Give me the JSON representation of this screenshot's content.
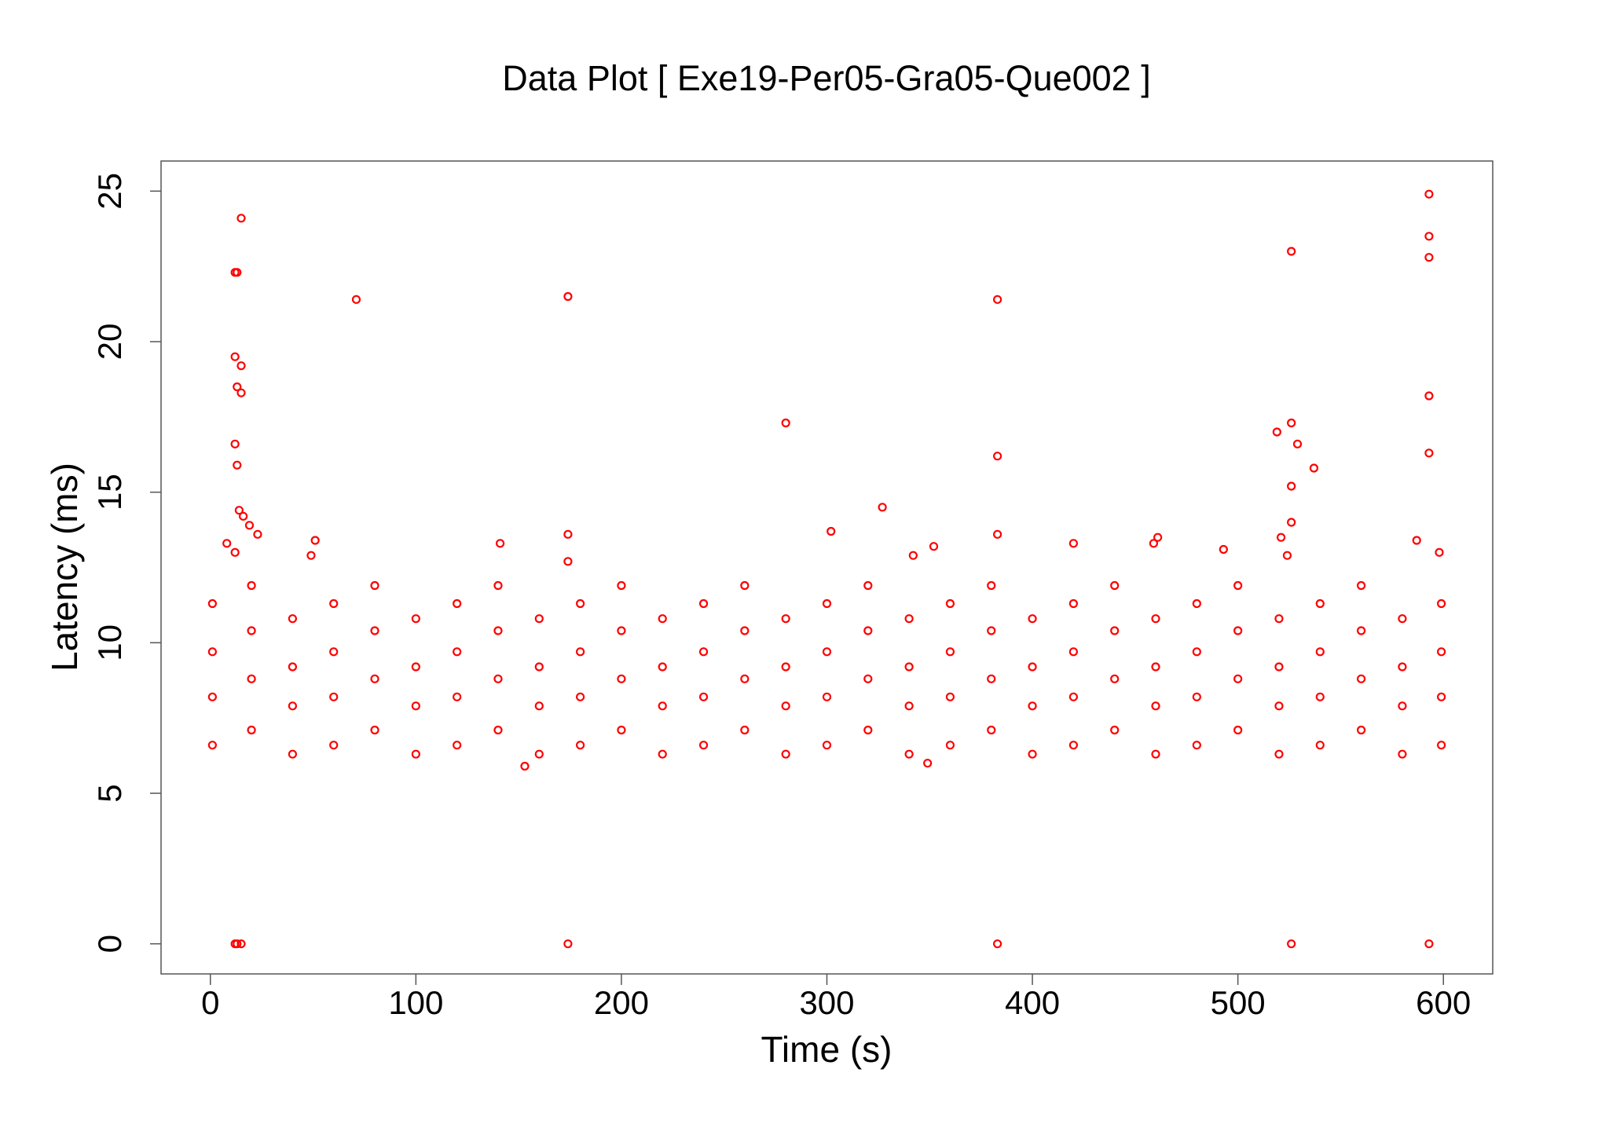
{
  "chart_data": {
    "type": "scatter",
    "title": "Data Plot [ Exe19-Per05-Gra05-Que002 ]",
    "x_label": "Time (s)",
    "y_label": "Latency (ms)",
    "color": "#ff0000",
    "xlim": [
      -24,
      624
    ],
    "ylim": [
      -1,
      26
    ],
    "xticks": [
      0,
      100,
      200,
      300,
      400,
      500,
      600
    ],
    "yticks": [
      0,
      5,
      10,
      15,
      20,
      25
    ],
    "x": [
      12,
      13,
      15,
      12,
      15,
      13,
      15,
      12,
      13,
      14,
      16,
      19,
      23,
      8,
      12,
      51,
      49,
      71,
      141,
      174,
      174,
      174,
      280,
      302,
      327,
      342,
      352,
      383,
      383,
      383,
      420,
      459,
      461,
      493,
      519,
      526,
      529,
      537,
      526,
      526,
      521,
      524,
      526,
      593,
      593,
      593,
      593,
      593,
      598,
      587,
      12,
      13,
      15,
      174,
      383,
      526,
      593,
      153,
      349,
      1,
      1,
      1,
      1,
      20,
      20,
      20,
      20,
      40,
      40,
      40,
      40,
      60,
      60,
      60,
      60,
      80,
      80,
      80,
      80,
      100,
      100,
      100,
      100,
      120,
      120,
      120,
      120,
      140,
      140,
      140,
      140,
      160,
      160,
      160,
      160,
      180,
      180,
      180,
      180,
      200,
      200,
      200,
      200,
      220,
      220,
      220,
      220,
      240,
      240,
      240,
      240,
      260,
      260,
      260,
      260,
      280,
      280,
      280,
      280,
      300,
      300,
      300,
      300,
      320,
      320,
      320,
      320,
      340,
      340,
      340,
      340,
      360,
      360,
      360,
      360,
      380,
      380,
      380,
      380,
      400,
      400,
      400,
      400,
      420,
      420,
      420,
      420,
      440,
      440,
      440,
      440,
      460,
      460,
      460,
      460,
      480,
      480,
      480,
      480,
      500,
      500,
      500,
      500,
      520,
      520,
      520,
      520,
      540,
      540,
      540,
      540,
      560,
      560,
      560,
      560,
      580,
      580,
      580,
      580,
      599,
      599,
      599,
      599
    ],
    "values": [
      22.3,
      22.3,
      24.1,
      19.5,
      19.2,
      18.5,
      18.3,
      16.6,
      15.9,
      14.4,
      14.2,
      13.9,
      13.6,
      13.3,
      13.0,
      13.4,
      12.9,
      21.4,
      13.3,
      21.5,
      13.6,
      12.7,
      17.3,
      13.7,
      14.5,
      12.9,
      13.2,
      21.4,
      16.2,
      13.6,
      13.3,
      13.3,
      13.5,
      13.1,
      17.0,
      17.3,
      16.6,
      15.8,
      15.2,
      14.0,
      13.5,
      12.9,
      23.0,
      24.9,
      23.5,
      22.8,
      18.2,
      16.3,
      13.0,
      13.4,
      0,
      0,
      0,
      0,
      0,
      0,
      0,
      5.9,
      6.0,
      6.6,
      8.2,
      9.7,
      11.3,
      7.1,
      8.8,
      10.4,
      11.9,
      6.3,
      7.9,
      9.2,
      10.8,
      6.6,
      8.2,
      9.7,
      11.3,
      7.1,
      8.8,
      10.4,
      11.9,
      6.3,
      7.9,
      9.2,
      10.8,
      6.6,
      8.2,
      9.7,
      11.3,
      7.1,
      8.8,
      10.4,
      11.9,
      6.3,
      7.9,
      9.2,
      10.8,
      6.6,
      8.2,
      9.7,
      11.3,
      7.1,
      8.8,
      10.4,
      11.9,
      6.3,
      7.9,
      9.2,
      10.8,
      6.6,
      8.2,
      9.7,
      11.3,
      7.1,
      8.8,
      10.4,
      11.9,
      6.3,
      7.9,
      9.2,
      10.8,
      6.6,
      8.2,
      9.7,
      11.3,
      7.1,
      8.8,
      10.4,
      11.9,
      6.3,
      7.9,
      9.2,
      10.8,
      6.6,
      8.2,
      9.7,
      11.3,
      7.1,
      8.8,
      10.4,
      11.9,
      6.3,
      7.9,
      9.2,
      10.8,
      6.6,
      8.2,
      9.7,
      11.3,
      7.1,
      8.8,
      10.4,
      11.9,
      6.3,
      7.9,
      9.2,
      10.8,
      6.6,
      8.2,
      9.7,
      11.3,
      7.1,
      8.8,
      10.4,
      11.9,
      6.3,
      7.9,
      9.2,
      10.8,
      6.6,
      8.2,
      9.7,
      11.3,
      7.1,
      8.8,
      10.4,
      11.9,
      6.3,
      7.9,
      9.2,
      10.8,
      6.6,
      8.2,
      9.7,
      11.3
    ]
  }
}
